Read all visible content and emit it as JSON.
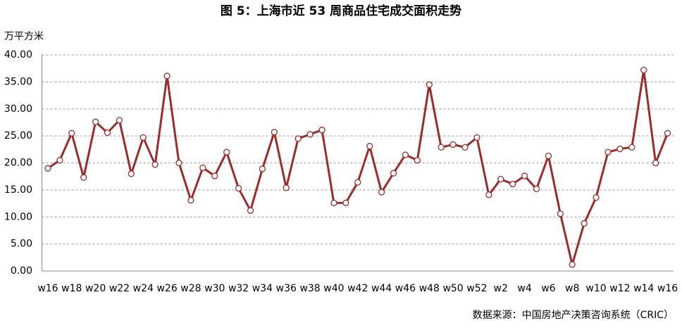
{
  "chart_data": {
    "type": "line",
    "title": "图 5：上海市近 53 周商品住宅成交面积走势",
    "y_label": "万平方米",
    "source": "数据来源：中国房地产决策咨询系统（CRIC）",
    "categories": [
      "w16",
      null,
      "w18",
      null,
      "w20",
      null,
      "w22",
      null,
      "w24",
      null,
      "w26",
      null,
      "w28",
      null,
      "w30",
      null,
      "w32",
      null,
      "w34",
      null,
      "w36",
      null,
      "w38",
      null,
      "w40",
      null,
      "w42",
      null,
      "w44",
      null,
      "w46",
      null,
      "w48",
      null,
      "w50",
      null,
      "w52",
      null,
      "w2",
      null,
      "w4",
      null,
      "w6",
      null,
      "w8",
      null,
      "w10",
      null,
      "w12",
      null,
      "w14",
      null,
      "w16"
    ],
    "series": [
      {
        "name": "成交面积",
        "color": "#9b2c2c",
        "values": [
          19.0,
          20.5,
          25.5,
          17.3,
          27.6,
          25.6,
          27.9,
          18.0,
          24.7,
          19.7,
          36.1,
          20.0,
          13.1,
          19.1,
          17.6,
          22.0,
          15.3,
          11.2,
          18.9,
          25.7,
          15.4,
          24.5,
          25.3,
          26.1,
          12.6,
          12.6,
          16.4,
          23.1,
          14.6,
          18.1,
          21.5,
          20.5,
          34.5,
          22.9,
          23.4,
          22.9,
          24.7,
          14.1,
          17.0,
          16.1,
          17.6,
          15.2,
          21.3,
          10.6,
          1.2,
          8.8,
          13.6,
          22.0,
          22.6,
          22.9,
          37.2,
          20.0,
          25.5
        ]
      }
    ],
    "ylim": [
      0,
      40
    ],
    "yticks": [
      {
        "value": 0,
        "label": "0.00"
      },
      {
        "value": 5,
        "label": "5.00"
      },
      {
        "value": 10,
        "label": "10.00"
      },
      {
        "value": 15,
        "label": "15.00"
      },
      {
        "value": 20,
        "label": "20.00"
      },
      {
        "value": 25,
        "label": "25.00"
      },
      {
        "value": 30,
        "label": "30.00"
      },
      {
        "value": 35,
        "label": "35.00"
      },
      {
        "value": 40,
        "label": "40.00"
      }
    ],
    "grid": true
  }
}
